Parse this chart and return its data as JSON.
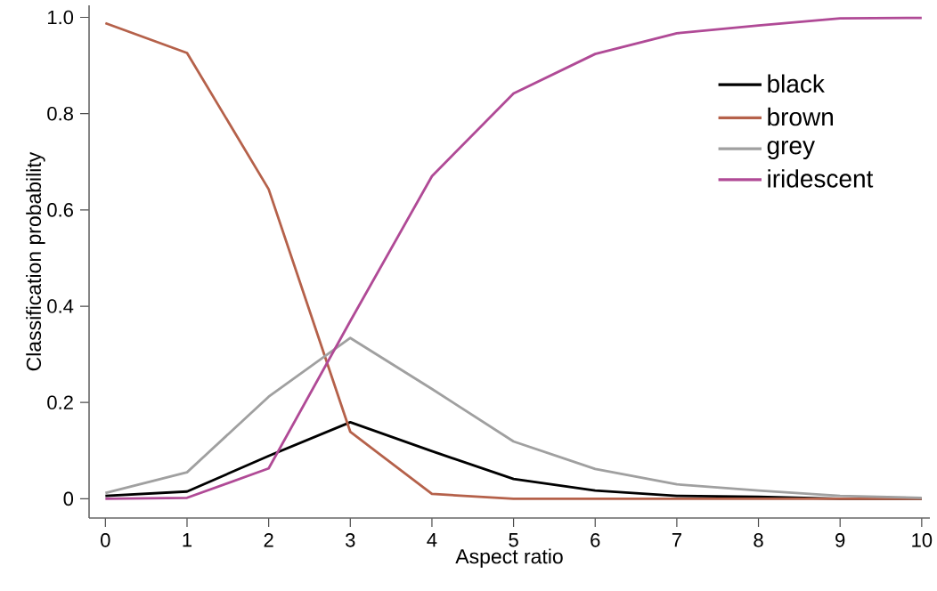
{
  "chart_data": {
    "type": "line",
    "xlabel": "Aspect ratio",
    "ylabel": "Classification probability",
    "x": [
      0,
      1,
      2,
      3,
      4,
      5,
      6,
      7,
      8,
      9,
      10
    ],
    "series": [
      {
        "name": "black",
        "color": "#000000",
        "values": [
          0.006,
          0.015,
          0.089,
          0.159,
          0.099,
          0.041,
          0.017,
          0.006,
          0.004,
          0.0,
          0.0
        ]
      },
      {
        "name": "brown",
        "color": "#b5614a",
        "values": [
          0.988,
          0.926,
          0.643,
          0.139,
          0.01,
          0.0,
          0.0,
          0.0,
          0.0,
          0.0,
          0.0
        ]
      },
      {
        "name": "grey",
        "color": "#a0a0a0",
        "values": [
          0.012,
          0.055,
          0.212,
          0.334,
          0.228,
          0.119,
          0.062,
          0.03,
          0.017,
          0.006,
          0.002
        ]
      },
      {
        "name": "iridescent",
        "color": "#b04a96",
        "values": [
          0.0,
          0.002,
          0.063,
          0.369,
          0.67,
          0.842,
          0.924,
          0.967,
          0.983,
          0.998,
          0.999
        ]
      }
    ],
    "xlim": [
      -0.2,
      10.1
    ],
    "ylim": [
      -0.04,
      1.025
    ],
    "xticks": [
      0,
      1,
      2,
      3,
      4,
      5,
      6,
      7,
      8,
      9,
      10
    ],
    "yticks": [
      {
        "value": 0,
        "label": "0"
      },
      {
        "value": 0.2,
        "label": "0.2"
      },
      {
        "value": 0.4,
        "label": "0.4"
      },
      {
        "value": 0.6,
        "label": "0.6"
      },
      {
        "value": 0.8,
        "label": "0.8"
      },
      {
        "value": 1.0,
        "label": "1.0"
      }
    ],
    "grid": false,
    "legend": "top right",
    "marker": "none",
    "line_style": "solid"
  }
}
